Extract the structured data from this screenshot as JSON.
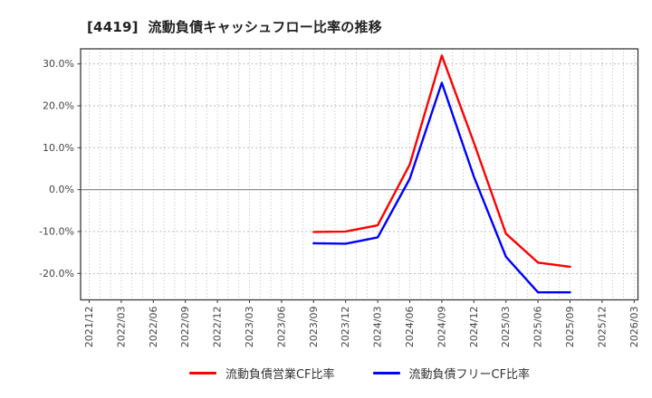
{
  "title": "[4419]  流動負債キャッシュフロー比率の推移",
  "style_colors": {
    "background": "#ffffff",
    "title": "#222222",
    "tick_label": "#444444",
    "legend_text": "#333333",
    "grid": "#b0b0b0",
    "zero_line": "#808080",
    "spine": "#3a3a3a"
  },
  "chart_data": {
    "type": "line",
    "title": "[4419]  流動負債キャッシュフロー比率の推移",
    "x_tick_labels": [
      "2021/12",
      "2022/03",
      "2022/06",
      "2022/09",
      "2022/12",
      "2023/03",
      "2023/06",
      "2023/09",
      "2023/12",
      "2024/03",
      "2024/06",
      "2024/09",
      "2024/12",
      "2025/03",
      "2025/06",
      "2025/09",
      "2025/12",
      "2026/03"
    ],
    "x_minor_divisions": 3,
    "yticks": [
      30,
      20,
      10,
      0,
      -10,
      -20
    ],
    "ytick_suffix": "%",
    "ylim": [
      -26.3,
      33.6
    ],
    "grid": true,
    "legend_position": "bottom",
    "series": [
      {
        "name": "流動負債営業CF比率",
        "color": "#ff0000",
        "x": [
          "2023/09",
          "2023/12",
          "2024/03",
          "2024/06",
          "2024/09",
          "2024/12",
          "2025/03",
          "2025/06",
          "2025/09"
        ],
        "values": [
          -10.1,
          -10.0,
          -8.5,
          6.0,
          32.0,
          11.2,
          -10.5,
          -17.4,
          -18.4
        ]
      },
      {
        "name": "流動負債フリーCF比率",
        "color": "#0000ff",
        "x": [
          "2023/09",
          "2023/12",
          "2024/03",
          "2024/06",
          "2024/09",
          "2024/12",
          "2025/03",
          "2025/06",
          "2025/09"
        ],
        "values": [
          -12.8,
          -12.9,
          -11.4,
          2.6,
          25.5,
          3.1,
          -16.0,
          -24.5,
          -24.5
        ]
      }
    ]
  }
}
